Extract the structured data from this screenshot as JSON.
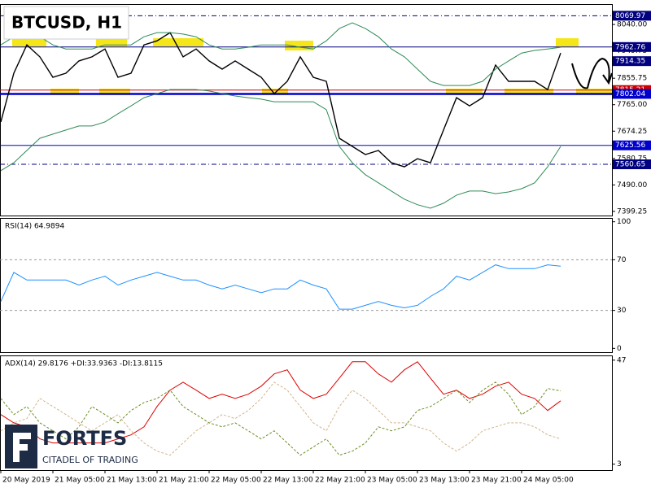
{
  "logo": {
    "name": "FORTFS",
    "tagline": "CITADEL OF TRADING"
  },
  "chart_data": [
    {
      "type": "line",
      "title": "BTCUSD, H1",
      "categories": [
        "20 May 2019",
        null,
        null,
        null,
        "21 May 05:00",
        null,
        null,
        null,
        "21 May 13:00",
        null,
        null,
        null,
        "21 May 21:00",
        null,
        null,
        null,
        "22 May 05:00",
        null,
        null,
        null,
        "22 May 13:00",
        null,
        null,
        null,
        "22 May 21:00",
        null,
        null,
        null,
        "23 May 05:00",
        null,
        null,
        null,
        "23 May 13:00",
        null,
        null,
        null,
        "23 May 21:00",
        null,
        null,
        null,
        "24 May 05:00",
        null,
        null,
        null
      ],
      "series": [
        {
          "color": "#000000",
          "values": [
            7706,
            7873,
            7970,
            7929,
            7859,
            7873,
            7915,
            7929,
            7956,
            7859,
            7873,
            7970,
            7984,
            8012,
            7929,
            7956,
            7915,
            7887,
            7915,
            7887,
            7859,
            7803,
            7845,
            7929,
            7859,
            7845,
            7650,
            7622,
            7594,
            7608,
            7566,
            7552,
            7580,
            7566,
            7678,
            7789,
            7761,
            7789,
            7901,
            7845,
            7845,
            7845,
            7817,
            7942
          ]
        },
        {
          "color": "#2e8b57",
          "values": [
            7970,
            7998,
            7998,
            7998,
            7970,
            7956,
            7956,
            7956,
            7970,
            7970,
            7970,
            7998,
            8012,
            8012,
            8007,
            7998,
            7970,
            7956,
            7956,
            7962,
            7970,
            7970,
            7970,
            7962,
            7956,
            7984,
            8026,
            8046,
            8026,
            7998,
            7956,
            7929,
            7887,
            7845,
            7831,
            7831,
            7831,
            7845,
            7887,
            7915,
            7942,
            7951,
            7956,
            7962
          ]
        },
        {
          "color": "#2e8b57",
          "values": [
            7539,
            7566,
            7608,
            7650,
            7664,
            7678,
            7692,
            7692,
            7706,
            7734,
            7761,
            7789,
            7803,
            7817,
            7817,
            7817,
            7812,
            7803,
            7795,
            7789,
            7784,
            7775,
            7775,
            7775,
            7775,
            7748,
            7622,
            7566,
            7525,
            7497,
            7469,
            7441,
            7422,
            7410,
            7427,
            7455,
            7469,
            7469,
            7460,
            7466,
            7477,
            7497,
            7552,
            7622
          ]
        }
      ],
      "ylim": [
        7385,
        8110
      ],
      "yticks": [
        {
          "value": 8040,
          "label": "8040.00"
        },
        7949.75,
        7855.75,
        {
          "value": 7765,
          "label": "7765.00"
        },
        7674.25,
        7580.75,
        {
          "value": 7490,
          "label": "7490.00"
        },
        7399.25
      ],
      "levels": [
        {
          "value": 7815.21,
          "color": "#d00000",
          "style": "solid"
        },
        {
          "value": 8069.97,
          "color": "#000080",
          "style": "dashdot"
        },
        {
          "value": 7962.76,
          "color": "#000080",
          "style": "solid"
        },
        {
          "value": 7914.35,
          "color": "#000080",
          "style": "none"
        },
        {
          "value": 7802.04,
          "color": "#0000cd",
          "style": "thick"
        },
        {
          "value": 7625.56,
          "color": "#0000cd",
          "style": "solid"
        },
        {
          "value": 7560.65,
          "color": "#000080",
          "style": "dashdot"
        }
      ]
    },
    {
      "type": "line",
      "title": "RSI(14) 64.9894",
      "series": [
        {
          "color": "#1e90ff",
          "values": [
            37,
            60,
            54,
            54,
            54,
            54,
            50,
            54,
            57,
            50,
            54,
            57,
            60,
            57,
            54,
            54,
            50,
            47,
            50,
            47,
            44,
            47,
            47,
            54,
            50,
            47,
            31,
            31,
            34,
            37,
            34,
            32,
            34,
            41,
            47,
            57,
            54,
            60,
            66,
            63,
            63,
            63,
            66,
            65
          ]
        }
      ],
      "ylim": [
        -3,
        103
      ],
      "yticks": [
        100,
        70,
        30,
        0
      ],
      "levels": [
        {
          "value": 70,
          "color": "#999999",
          "style": "dash"
        },
        {
          "value": 30,
          "color": "#999999",
          "style": "dash"
        }
      ]
    },
    {
      "type": "line",
      "title": "ADX(14) 29.8176 +DI:33.9363 -DI:13.8115",
      "series": [
        {
          "color": "#e00000",
          "dash": false,
          "values": [
            24,
            20.5,
            18.8,
            13.7,
            12,
            12,
            12,
            12,
            12,
            13.7,
            15.4,
            18.8,
            27.4,
            34.3,
            37.7,
            34.3,
            30.8,
            32.6,
            30.8,
            32.6,
            36,
            41.2,
            42.9,
            34.3,
            30.8,
            32.6,
            39.4,
            46.3,
            46.3,
            41.2,
            37.7,
            42.9,
            46.3,
            39.4,
            32.6,
            34.3,
            30.8,
            32.6,
            36,
            37.7,
            32.6,
            30.8,
            25.7,
            29.8
          ]
        },
        {
          "color": "#6b8e23",
          "dash": true,
          "values": [
            30.8,
            24,
            27.4,
            20.5,
            17.1,
            13.7,
            18.8,
            27.4,
            24,
            20.5,
            25.7,
            29.1,
            30.8,
            34.3,
            27.4,
            24,
            20.5,
            18.8,
            20.5,
            17.1,
            13.7,
            17.1,
            12,
            6.8,
            10.3,
            13.7,
            6.8,
            8.5,
            12,
            18.8,
            17.1,
            18.8,
            25.7,
            27.4,
            30.8,
            34.3,
            29.1,
            34.3,
            37.7,
            32.6,
            24,
            27.4,
            35,
            34
          ]
        },
        {
          "color": "#d2b48c",
          "dash": true,
          "values": [
            17.1,
            20.5,
            22.3,
            30.8,
            27.4,
            24,
            20.5,
            17.1,
            20.5,
            24,
            17.1,
            12,
            8.5,
            6.8,
            12,
            17.1,
            20.5,
            24,
            22.3,
            25.7,
            30.8,
            37.7,
            34.3,
            27.4,
            20.5,
            17.1,
            27.4,
            34.3,
            30.8,
            25.7,
            20.5,
            20.5,
            18.8,
            17.1,
            12,
            8.5,
            12,
            17.1,
            18.8,
            20.5,
            20.5,
            18.8,
            15.4,
            13.7
          ]
        }
      ],
      "ylim": [
        0.5,
        49
      ],
      "yticks": [
        47,
        3
      ]
    }
  ]
}
